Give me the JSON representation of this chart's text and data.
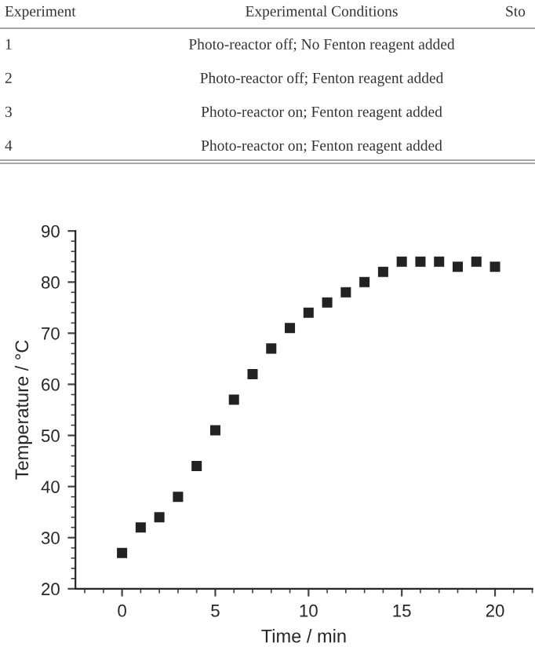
{
  "chart_data": {
    "type": "scatter",
    "xlabel": "Time / min",
    "ylabel": "Temperature / °C",
    "x": [
      0,
      1,
      2,
      3,
      4,
      5,
      6,
      7,
      8,
      9,
      10,
      11,
      12,
      13,
      14,
      15,
      16,
      17,
      18,
      19,
      20
    ],
    "series": [
      {
        "color": "#222222",
        "values": [
          27,
          32,
          34,
          38,
          44,
          51,
          57,
          62,
          67,
          71,
          74,
          76,
          78,
          80,
          82,
          84,
          84,
          84,
          83,
          84,
          83
        ]
      }
    ],
    "marker": "square",
    "xlim": [
      -2.5,
      22
    ],
    "ylim": [
      20,
      90
    ],
    "xticks": [
      0,
      5,
      10,
      15,
      20
    ],
    "yticks": [
      20,
      30,
      40,
      50,
      60,
      70,
      80,
      90
    ],
    "grid": false,
    "legend": false,
    "annotations": [
      "Experiment",
      "Experimental Conditions",
      "Sto",
      "1",
      "Photo-reactor off; No Fenton reagent added",
      "2",
      "Photo-reactor off; Fenton reagent added",
      "3",
      "Photo-reactor on; Fenton reagent added",
      "4",
      "Photo-reactor on; Fenton reagent added"
    ]
  }
}
